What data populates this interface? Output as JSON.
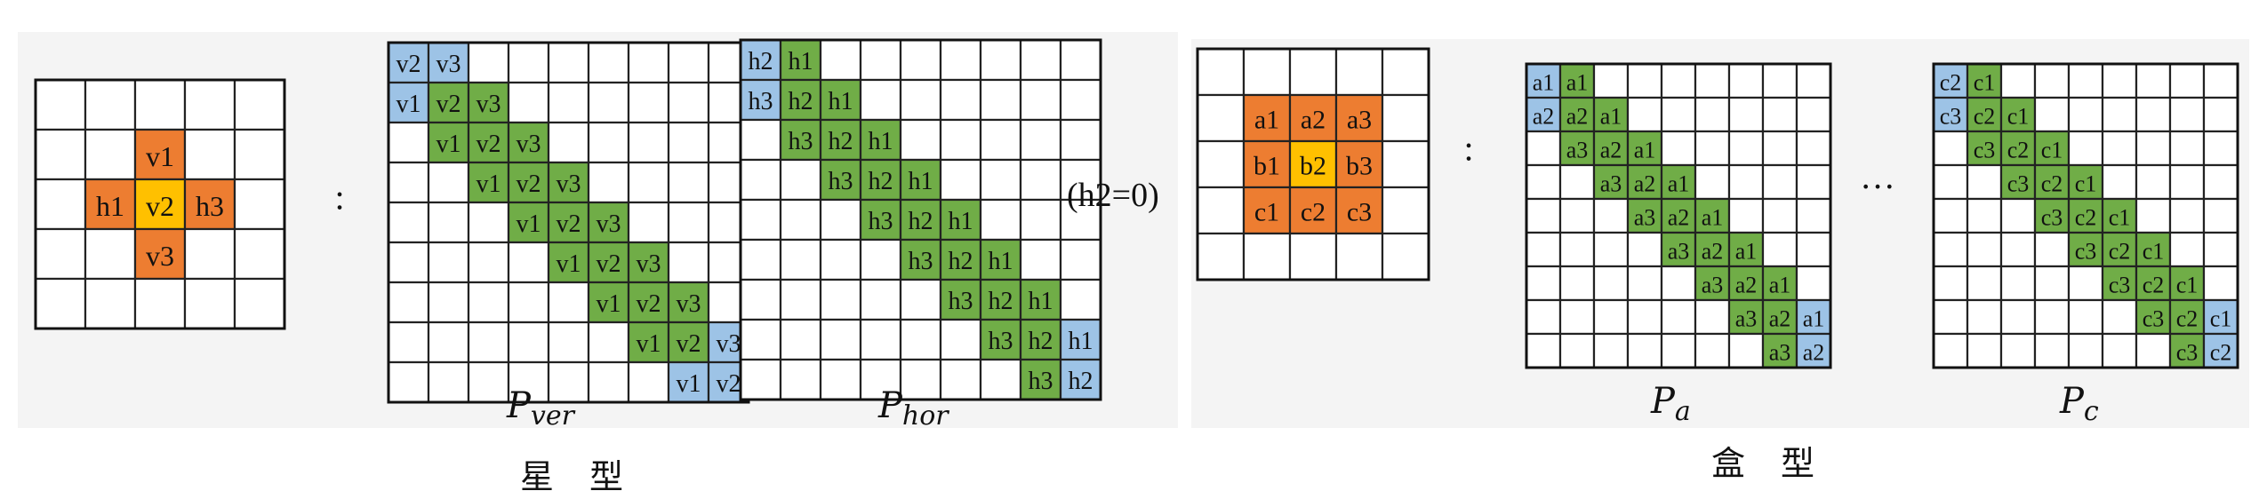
{
  "colors": {
    "orange": "#ED7D31",
    "yellow": "#FFC000",
    "green": "#70AD47",
    "blue": "#9DC3E6",
    "empty": "#ffffff",
    "panel": "#f4f4f4"
  },
  "star": {
    "caption": "星 型",
    "kernel_cells": [
      {
        "label": "v1",
        "color": "orange"
      },
      {
        "label": "h1",
        "color": "orange"
      },
      {
        "label": "v2",
        "color": "yellow"
      },
      {
        "label": "h3",
        "color": "orange"
      },
      {
        "label": "v3",
        "color": "orange"
      }
    ],
    "colon": ":",
    "p_ver": {
      "name": "P",
      "sub": "ver",
      "rows": [
        [
          "v2",
          "v3",
          "",
          "",
          "",
          "",
          "",
          "",
          ""
        ],
        [
          "v1",
          "v2",
          "v3",
          "",
          "",
          "",
          "",
          "",
          ""
        ],
        [
          "",
          "v1",
          "v2",
          "v3",
          "",
          "",
          "",
          "",
          ""
        ],
        [
          "",
          "",
          "v1",
          "v2",
          "v3",
          "",
          "",
          "",
          ""
        ],
        [
          "",
          "",
          "",
          "v1",
          "v2",
          "v3",
          "",
          "",
          ""
        ],
        [
          "",
          "",
          "",
          "",
          "v1",
          "v2",
          "v3",
          "",
          ""
        ],
        [
          "",
          "",
          "",
          "",
          "",
          "v1",
          "v2",
          "v3",
          ""
        ],
        [
          "",
          "",
          "",
          "",
          "",
          "",
          "v1",
          "v2",
          "v3"
        ],
        [
          "",
          "",
          "",
          "",
          "",
          "",
          "",
          "v1",
          "v2"
        ]
      ]
    },
    "p_hor": {
      "name": "P",
      "sub": "hor",
      "rows": [
        [
          "h2",
          "h1",
          "",
          "",
          "",
          "",
          "",
          "",
          ""
        ],
        [
          "h3",
          "h2",
          "h1",
          "",
          "",
          "",
          "",
          "",
          ""
        ],
        [
          "",
          "h3",
          "h2",
          "h1",
          "",
          "",
          "",
          "",
          ""
        ],
        [
          "",
          "",
          "h3",
          "h2",
          "h1",
          "",
          "",
          "",
          ""
        ],
        [
          "",
          "",
          "",
          "h3",
          "h2",
          "h1",
          "",
          "",
          ""
        ],
        [
          "",
          "",
          "",
          "",
          "h3",
          "h2",
          "h1",
          "",
          ""
        ],
        [
          "",
          "",
          "",
          "",
          "",
          "h3",
          "h2",
          "h1",
          ""
        ],
        [
          "",
          "",
          "",
          "",
          "",
          "",
          "h3",
          "h2",
          "h1"
        ],
        [
          "",
          "",
          "",
          "",
          "",
          "",
          "",
          "h3",
          "h2"
        ]
      ]
    },
    "note": "(h2=0)"
  },
  "box": {
    "caption": "盒 型",
    "kernel_rows": [
      [
        "a1",
        "a2",
        "a3"
      ],
      [
        "b1",
        "b2",
        "b3"
      ],
      [
        "c1",
        "c2",
        "c3"
      ]
    ],
    "colon": ":",
    "ellipsis": "···",
    "p_a": {
      "name": "P",
      "sub": "a",
      "rows": [
        [
          "a1",
          "a1",
          "",
          "",
          "",
          "",
          "",
          "",
          ""
        ],
        [
          "a2",
          "a2",
          "a1",
          "",
          "",
          "",
          "",
          "",
          ""
        ],
        [
          "",
          "a3",
          "a2",
          "a1",
          "",
          "",
          "",
          "",
          ""
        ],
        [
          "",
          "",
          "a3",
          "a2",
          "a1",
          "",
          "",
          "",
          ""
        ],
        [
          "",
          "",
          "",
          "a3",
          "a2",
          "a1",
          "",
          "",
          ""
        ],
        [
          "",
          "",
          "",
          "",
          "a3",
          "a2",
          "a1",
          "",
          ""
        ],
        [
          "",
          "",
          "",
          "",
          "",
          "a3",
          "a2",
          "a1",
          ""
        ],
        [
          "",
          "",
          "",
          "",
          "",
          "",
          "a3",
          "a2",
          "a1"
        ],
        [
          "",
          "",
          "",
          "",
          "",
          "",
          "",
          "a3",
          "a2"
        ]
      ]
    },
    "p_c": {
      "name": "P",
      "sub": "c",
      "rows": [
        [
          "c2",
          "c1",
          "",
          "",
          "",
          "",
          "",
          "",
          ""
        ],
        [
          "c3",
          "c2",
          "c1",
          "",
          "",
          "",
          "",
          "",
          ""
        ],
        [
          "",
          "c3",
          "c2",
          "c1",
          "",
          "",
          "",
          "",
          ""
        ],
        [
          "",
          "",
          "c3",
          "c2",
          "c1",
          "",
          "",
          "",
          ""
        ],
        [
          "",
          "",
          "",
          "c3",
          "c2",
          "c1",
          "",
          "",
          ""
        ],
        [
          "",
          "",
          "",
          "",
          "c3",
          "c2",
          "c1",
          "",
          ""
        ],
        [
          "",
          "",
          "",
          "",
          "",
          "c3",
          "c2",
          "c1",
          ""
        ],
        [
          "",
          "",
          "",
          "",
          "",
          "",
          "c3",
          "c2",
          "c1"
        ],
        [
          "",
          "",
          "",
          "",
          "",
          "",
          "",
          "c3",
          "c2"
        ]
      ]
    }
  }
}
